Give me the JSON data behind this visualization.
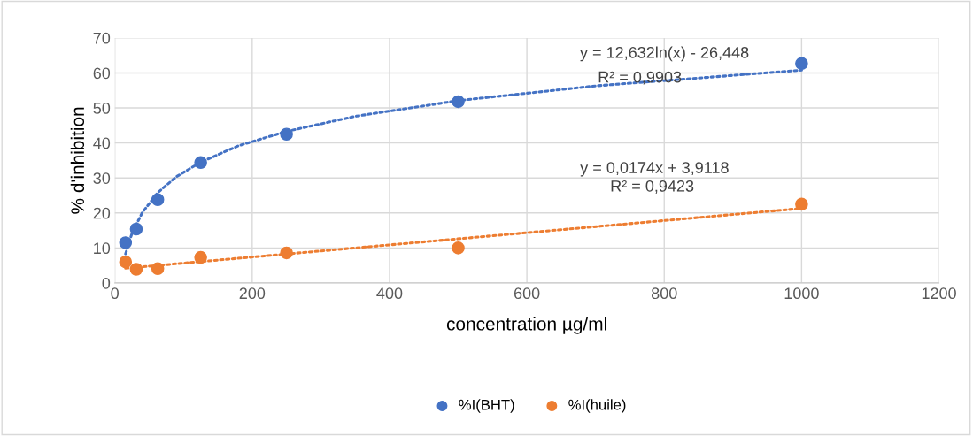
{
  "chart_data": {
    "type": "scatter",
    "xlabel": "concentration µg/ml",
    "ylabel": "% d'inhibition",
    "xlim": [
      0,
      1200
    ],
    "xticks": [
      0,
      200,
      400,
      600,
      800,
      1000,
      1200
    ],
    "ylim": [
      0,
      70
    ],
    "yticks": [
      0,
      10,
      20,
      30,
      40,
      50,
      60,
      70
    ],
    "grid": true,
    "legend": "bottom",
    "marker": "circle",
    "series": [
      {
        "name": "%I(BHT)",
        "color": "#4472c4",
        "x": [
          15.625,
          31.25,
          62.5,
          125,
          250,
          500,
          1000
        ],
        "values": [
          11.5,
          15.4,
          23.8,
          34.4,
          42.5,
          51.8,
          62.7
        ]
      },
      {
        "name": "%I(huile)",
        "color": "#ed7d31",
        "x": [
          15.625,
          31.25,
          62.5,
          125,
          250,
          500,
          1000
        ],
        "values": [
          6.0,
          3.9,
          4.1,
          7.3,
          8.6,
          10.0,
          22.5
        ]
      },
      {
        "type": "line",
        "line_style": "dotted",
        "marker": "none",
        "color": "#4472c4",
        "x": [
          15.625,
          25,
          40,
          62.5,
          90,
          125,
          180,
          250,
          350,
          500,
          700,
          1000
        ],
        "values": [
          8.3,
          14.2,
          20.1,
          25.8,
          30.4,
          34.5,
          39.2,
          43.3,
          47.6,
          52.1,
          56.3,
          60.8
        ]
      },
      {
        "type": "line",
        "line_style": "dotted",
        "marker": "none",
        "color": "#ed7d31",
        "x": [
          15.625,
          1000
        ],
        "values": [
          4.2,
          21.3
        ]
      }
    ],
    "annotations": [
      "y = 12,632ln(x) - 26,448",
      "R² = 0,9903",
      "y = 0,0174x + 3,9118",
      "R² = 0,9423"
    ]
  }
}
